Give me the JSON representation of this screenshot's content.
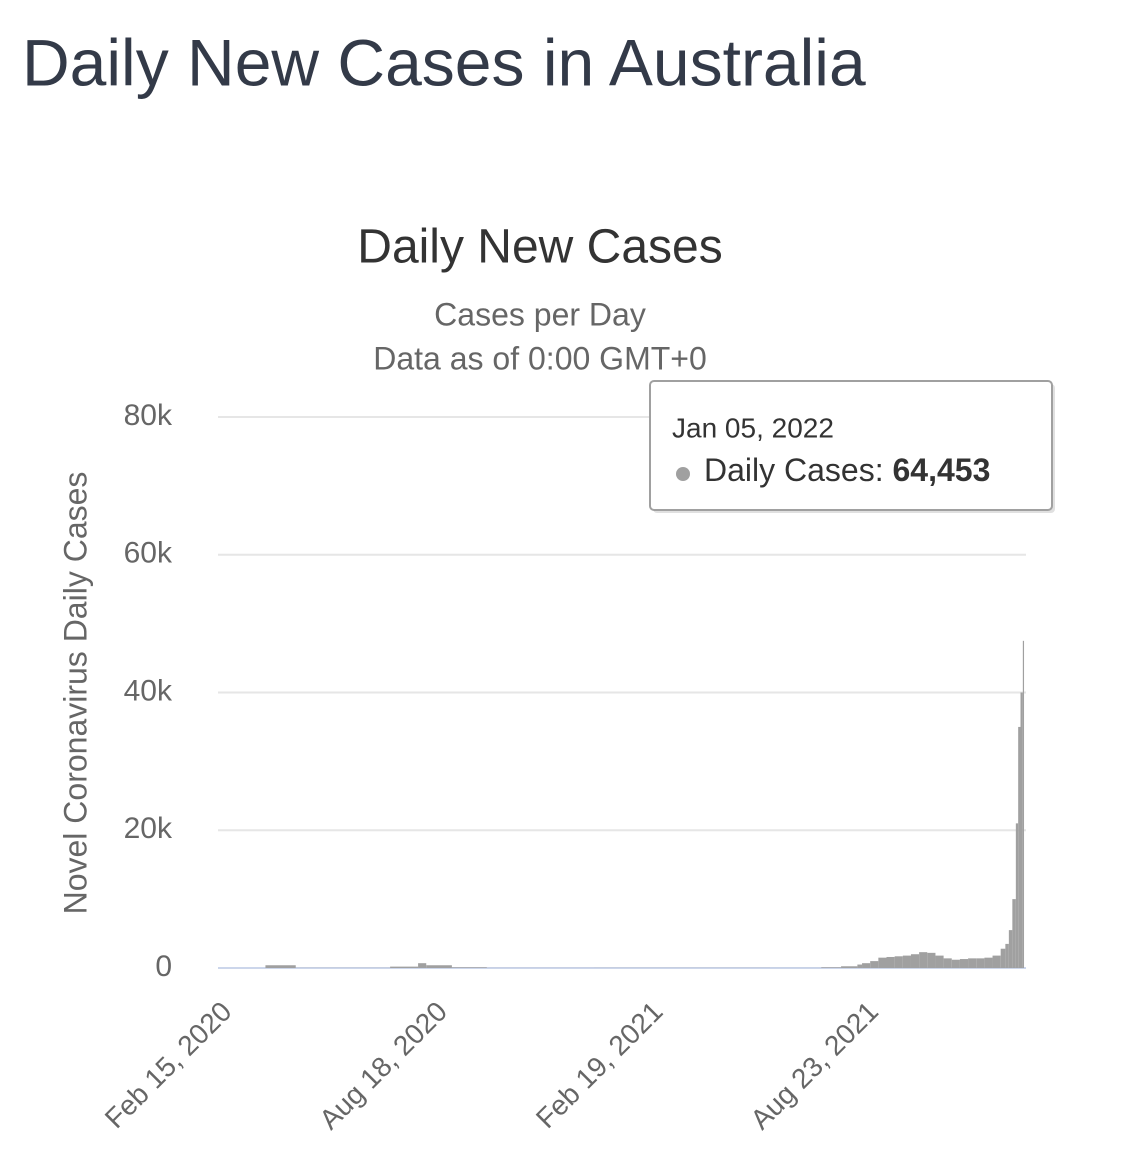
{
  "header": {
    "title": "Daily New Cases in Australia"
  },
  "chart_data": {
    "type": "bar",
    "title": "Daily New Cases",
    "subtitle": "Cases per Day",
    "subtitle2": "Data as of 0:00 GMT+0",
    "y_axis_label": "Novel Coronavirus Daily Cases",
    "color": "#a0a0a0",
    "grid": true,
    "x": [
      "Feb 15, 2020",
      "Mar 25, 2020",
      "Apr 20, 2020",
      "Jul 10, 2020",
      "Aug 3, 2020",
      "Aug 10, 2020",
      "Sep 1, 2020",
      "Oct 1, 2020",
      "Jan 1, 2021",
      "Jun 1, 2021",
      "Jul 15, 2021",
      "Aug 1, 2021",
      "Aug 15, 2021",
      "Aug 19, 2021",
      "Aug 26, 2021",
      "Sep 2, 2021",
      "Sep 9, 2021",
      "Sep 16, 2021",
      "Sep 23, 2021",
      "Sep 30, 2021",
      "Oct 7, 2021",
      "Oct 14, 2021",
      "Oct 21, 2021",
      "Oct 28, 2021",
      "Nov 4, 2021",
      "Nov 11, 2021",
      "Nov 18, 2021",
      "Nov 25, 2021",
      "Dec 2, 2021",
      "Dec 9, 2021",
      "Dec 16, 2021",
      "Dec 20, 2021",
      "Dec 23, 2021",
      "Dec 26, 2021",
      "Dec 29, 2021",
      "Dec 31, 2021",
      "Jan 2, 2022",
      "Jan 4, 2022"
    ],
    "values": [
      0,
      400,
      20,
      200,
      700,
      400,
      100,
      15,
      20,
      10,
      100,
      250,
      500,
      700,
      1000,
      1500,
      1600,
      1700,
      1800,
      2000,
      2300,
      2200,
      1800,
      1400,
      1200,
      1300,
      1400,
      1400,
      1500,
      1800,
      2800,
      3500,
      5500,
      10000,
      21000,
      35000,
      40000,
      47500
    ],
    "xticks": [
      "Feb 15, 2020",
      "Aug 18, 2020",
      "Feb 19, 2021",
      "Aug 23, 2021"
    ],
    "ylim": [
      0,
      80000
    ],
    "yticks": [
      {
        "value": 0,
        "label": "0"
      },
      {
        "value": 20000,
        "label": "20k"
      },
      {
        "value": 40000,
        "label": "40k"
      },
      {
        "value": 60000,
        "label": "60k"
      },
      {
        "value": 80000,
        "label": "80k"
      }
    ],
    "tooltip": {
      "date": "Jan 05, 2022",
      "label": "Daily Cases:",
      "value": "64,453"
    }
  }
}
